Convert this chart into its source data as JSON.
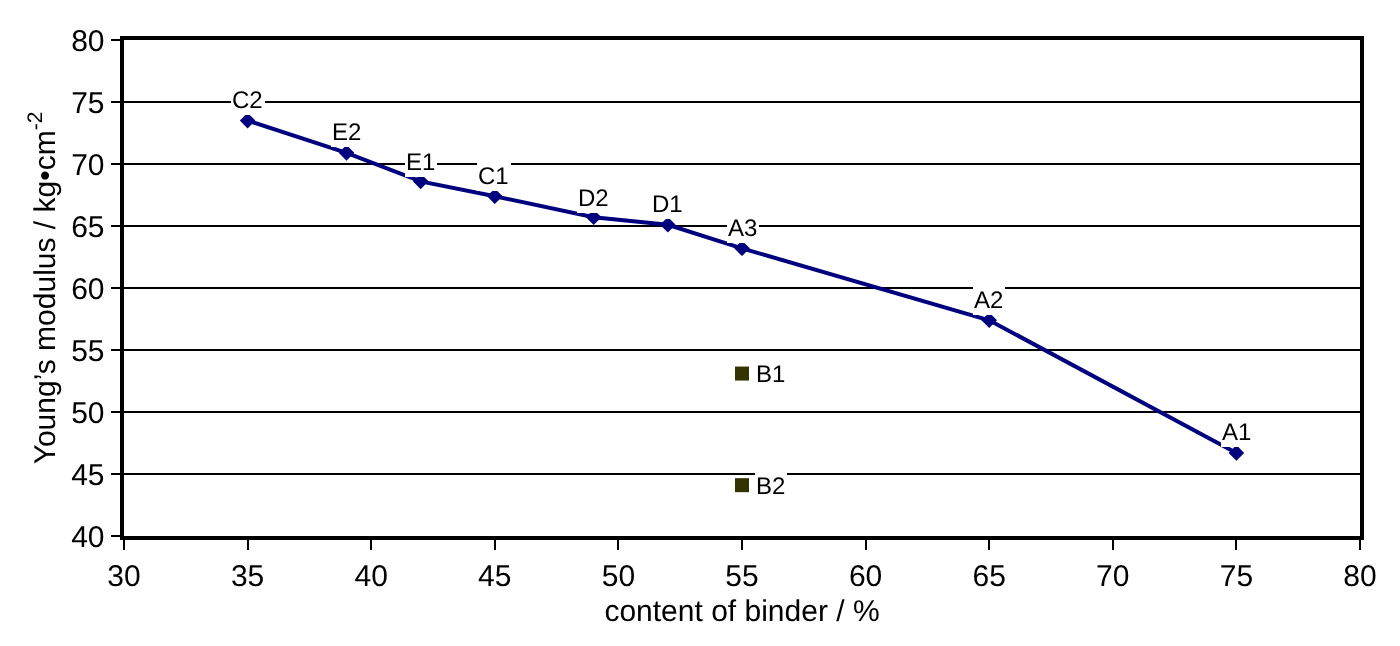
{
  "chart_data": {
    "type": "line",
    "xlabel": "content of binder / %",
    "ylabel": "Young’s modulus / kg•cm$^{-2}$",
    "series": [
      {
        "color": "#00007f",
        "marker": "diamond",
        "x": [
          35,
          39,
          42,
          45,
          49,
          52,
          55,
          65,
          75
        ],
        "values": [
          73.5,
          70.9,
          68.6,
          67.4,
          65.7,
          65.1,
          63.2,
          57.4,
          46.7
        ]
      },
      {
        "type": "scatter",
        "color": "#333300",
        "marker": "square",
        "x": [
          55,
          55
        ],
        "values": [
          53.1,
          44.1
        ]
      }
    ],
    "annotations": [
      {
        "text": "C2",
        "x": 35,
        "y": 73.5
      },
      {
        "text": "E2",
        "x": 39,
        "y": 70.9
      },
      {
        "text": "E1",
        "x": 42,
        "y": 68.6
      },
      {
        "text": "C1",
        "x": 45,
        "y": 67.4
      },
      {
        "text": "D2",
        "x": 49,
        "y": 65.7
      },
      {
        "text": "D1",
        "x": 52,
        "y": 65.1
      },
      {
        "text": "A3",
        "x": 55,
        "y": 63.2
      },
      {
        "text": "A2",
        "x": 65,
        "y": 57.4
      },
      {
        "text": "A1",
        "x": 75,
        "y": 46.7
      },
      {
        "text": "B1",
        "x": 55,
        "y": 53.1
      },
      {
        "text": "B2",
        "x": 55,
        "y": 44.1
      }
    ],
    "xlim": [
      30,
      80
    ],
    "xticks": [
      30,
      35,
      40,
      45,
      50,
      55,
      60,
      65,
      70,
      75,
      80
    ],
    "ylim": [
      40,
      80
    ],
    "yticks": [
      40,
      45,
      50,
      55,
      60,
      65,
      70,
      75,
      80
    ],
    "grid": "y"
  }
}
